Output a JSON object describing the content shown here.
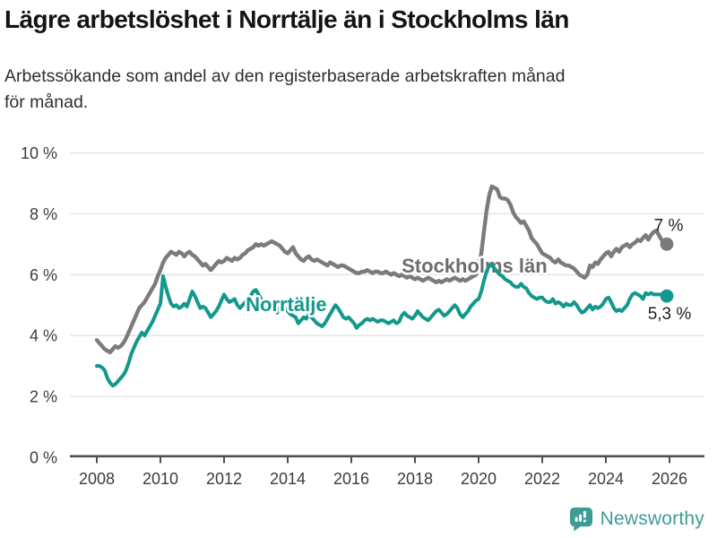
{
  "footer": {
    "brand": "Newsworthy",
    "logo_icon": "newsworthy-chart-bubble-icon"
  },
  "colors": {
    "norrtalje_teal": "#12988C",
    "stockholm_gray": "#7b7b7b",
    "stockholm_label_gray": "#6d6d6d",
    "grid": "#e2e2e2",
    "axis": "#4f4f4f",
    "tick_text": "#3c3c3c",
    "end_label_text": "#1f1f1f",
    "title_text": "#141414",
    "brand_teal": "#3F9C95"
  },
  "chart_data": {
    "type": "line",
    "title": "Lägre arbetslöshet i Norrtälje än i Stockholms län",
    "subtitle_lines": [
      "Arbetssökande som andel av den registerbaserade arbetskraften månad",
      "för månad."
    ],
    "unit": "%",
    "x_ticks": [
      2008,
      2010,
      2012,
      2014,
      2016,
      2018,
      2020,
      2022,
      2024,
      2026
    ],
    "x_tick_labels": [
      "2008",
      "2010",
      "2012",
      "2014",
      "2016",
      "2018",
      "2020",
      "2022",
      "2024",
      "2026"
    ],
    "y_ticks": [
      0,
      2,
      4,
      6,
      8,
      10
    ],
    "y_tick_labels": [
      "0 %",
      "2 %",
      "4 %",
      "6 %",
      "8 %",
      "10 %"
    ],
    "ylim": [
      0,
      10
    ],
    "grid": true,
    "legend_position": "inline-labels",
    "x_start_year": 2008,
    "points_per_year": 12,
    "series": [
      {
        "name": "Stockholms län",
        "color": "#7b7b7b",
        "label_color": "#6d6d6d",
        "end_label": "7 %",
        "last_value": 7.0,
        "label_anchor": {
          "year": 2017.58,
          "value": 6.07
        },
        "end_label_offset": {
          "dx": 2,
          "dy": -15
        },
        "values": [
          3.85,
          3.75,
          3.65,
          3.55,
          3.5,
          3.45,
          3.55,
          3.65,
          3.6,
          3.65,
          3.75,
          3.9,
          4.1,
          4.3,
          4.5,
          4.7,
          4.9,
          5.0,
          5.1,
          5.25,
          5.4,
          5.55,
          5.7,
          5.95,
          6.15,
          6.4,
          6.55,
          6.65,
          6.75,
          6.7,
          6.65,
          6.75,
          6.7,
          6.6,
          6.7,
          6.75,
          6.65,
          6.6,
          6.5,
          6.4,
          6.3,
          6.35,
          6.25,
          6.15,
          6.25,
          6.35,
          6.45,
          6.4,
          6.45,
          6.55,
          6.5,
          6.45,
          6.55,
          6.5,
          6.55,
          6.65,
          6.7,
          6.8,
          6.85,
          6.9,
          7.0,
          6.95,
          7.0,
          6.95,
          7.0,
          7.05,
          7.1,
          7.05,
          7.0,
          6.95,
          6.85,
          6.75,
          6.7,
          6.8,
          6.9,
          6.7,
          6.6,
          6.5,
          6.45,
          6.55,
          6.6,
          6.5,
          6.45,
          6.5,
          6.45,
          6.4,
          6.35,
          6.3,
          6.4,
          6.35,
          6.3,
          6.25,
          6.3,
          6.3,
          6.25,
          6.2,
          6.15,
          6.1,
          6.05,
          6.05,
          6.1,
          6.1,
          6.15,
          6.1,
          6.05,
          6.1,
          6.1,
          6.05,
          6.05,
          6.1,
          6.05,
          6.0,
          6.05,
          6.0,
          5.95,
          6.0,
          5.95,
          5.9,
          5.95,
          5.9,
          5.85,
          5.9,
          5.85,
          5.8,
          5.85,
          5.9,
          5.85,
          5.8,
          5.75,
          5.8,
          5.75,
          5.8,
          5.85,
          5.8,
          5.85,
          5.9,
          5.85,
          5.8,
          5.85,
          5.8,
          5.85,
          5.9,
          5.95,
          6.0,
          6.2,
          6.7,
          7.4,
          8.1,
          8.6,
          8.9,
          8.85,
          8.8,
          8.55,
          8.5,
          8.5,
          8.45,
          8.3,
          8.05,
          7.9,
          7.8,
          7.7,
          7.75,
          7.6,
          7.45,
          7.2,
          7.1,
          7.0,
          6.85,
          6.7,
          6.65,
          6.6,
          6.55,
          6.45,
          6.4,
          6.5,
          6.4,
          6.35,
          6.3,
          6.3,
          6.25,
          6.2,
          6.1,
          6.0,
          5.95,
          5.9,
          6.0,
          6.3,
          6.25,
          6.4,
          6.35,
          6.5,
          6.6,
          6.7,
          6.75,
          6.6,
          6.75,
          6.85,
          6.75,
          6.9,
          6.95,
          7.0,
          6.9,
          7.0,
          7.05,
          7.15,
          7.1,
          7.2,
          7.3,
          7.15,
          7.3,
          7.4,
          7.45,
          7.3,
          7.15,
          7.0,
          7.0
        ]
      },
      {
        "name": "Norrtälje",
        "color": "#12988C",
        "label_color": "#12988C",
        "end_label": "5,3 %",
        "last_value": 5.3,
        "label_anchor": {
          "year": 2012.68,
          "value": 4.8
        },
        "end_label_offset": {
          "dx": 3,
          "dy": 26
        },
        "values": [
          3.0,
          3.0,
          2.95,
          2.85,
          2.6,
          2.45,
          2.35,
          2.4,
          2.5,
          2.6,
          2.7,
          2.85,
          3.1,
          3.4,
          3.6,
          3.8,
          3.95,
          4.1,
          4.0,
          4.15,
          4.3,
          4.45,
          4.65,
          4.85,
          5.05,
          5.95,
          5.6,
          5.3,
          5.05,
          4.95,
          5.0,
          4.9,
          4.95,
          5.05,
          4.95,
          5.2,
          5.45,
          5.3,
          5.1,
          4.9,
          4.95,
          4.9,
          4.75,
          4.6,
          4.7,
          4.8,
          4.95,
          5.15,
          5.35,
          5.2,
          5.1,
          5.15,
          5.2,
          5.0,
          4.9,
          5.0,
          5.1,
          5.15,
          5.3,
          5.45,
          5.5,
          5.35,
          5.2,
          5.05,
          4.95,
          4.9,
          5.0,
          4.85,
          4.75,
          4.9,
          5.05,
          4.9,
          4.8,
          4.7,
          4.65,
          4.6,
          4.4,
          4.5,
          4.6,
          4.55,
          4.7,
          4.6,
          4.5,
          4.4,
          4.35,
          4.3,
          4.4,
          4.55,
          4.7,
          4.85,
          5.0,
          4.9,
          4.75,
          4.6,
          4.55,
          4.6,
          4.5,
          4.4,
          4.25,
          4.35,
          4.4,
          4.5,
          4.55,
          4.5,
          4.55,
          4.5,
          4.45,
          4.5,
          4.5,
          4.45,
          4.4,
          4.45,
          4.5,
          4.4,
          4.45,
          4.65,
          4.75,
          4.65,
          4.6,
          4.55,
          4.65,
          4.8,
          4.7,
          4.6,
          4.55,
          4.5,
          4.6,
          4.7,
          4.8,
          4.85,
          4.75,
          4.65,
          4.7,
          4.8,
          4.9,
          5.0,
          4.9,
          4.7,
          4.6,
          4.7,
          4.8,
          4.95,
          5.05,
          5.15,
          5.2,
          5.45,
          5.8,
          6.1,
          6.3,
          6.3,
          6.2,
          6.1,
          6.0,
          5.95,
          5.85,
          5.8,
          5.75,
          5.65,
          5.6,
          5.6,
          5.7,
          5.6,
          5.55,
          5.4,
          5.3,
          5.25,
          5.2,
          5.25,
          5.25,
          5.15,
          5.1,
          5.1,
          5.2,
          5.05,
          5.1,
          5.05,
          4.95,
          5.05,
          5.0,
          5.0,
          5.1,
          5.0,
          4.85,
          4.75,
          4.8,
          4.9,
          5.0,
          4.85,
          4.95,
          4.9,
          4.95,
          5.05,
          5.2,
          5.25,
          5.1,
          4.9,
          4.8,
          4.85,
          4.8,
          4.9,
          5.0,
          5.2,
          5.35,
          5.4,
          5.35,
          5.3,
          5.2,
          5.4,
          5.35,
          5.4,
          5.35,
          5.35,
          5.35,
          5.35,
          5.3,
          5.3
        ]
      }
    ]
  }
}
